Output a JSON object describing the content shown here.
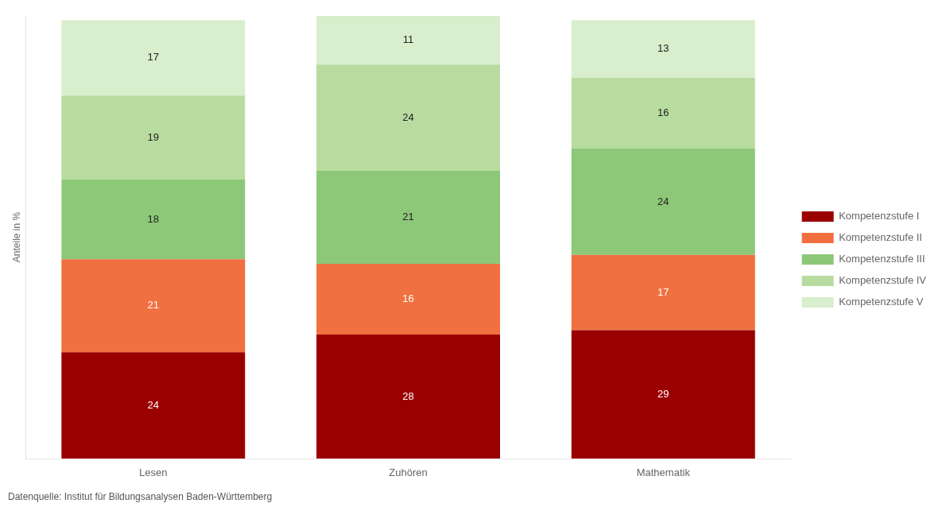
{
  "chart_data": {
    "type": "bar",
    "stacked": true,
    "categories": [
      "Lesen",
      "Zuhören",
      "Mathematik"
    ],
    "series": [
      {
        "name": "Kompetenzstufe I",
        "color": "#9b0000",
        "values": [
          24,
          28,
          29
        ]
      },
      {
        "name": "Kompetenzstufe II",
        "color": "#f07040",
        "values": [
          21,
          16,
          17
        ]
      },
      {
        "name": "Kompetenzstufe III",
        "color": "#8dc878",
        "values": [
          18,
          21,
          24
        ]
      },
      {
        "name": "Kompetenzstufe IV",
        "color": "#b8dca0",
        "values": [
          19,
          24,
          16
        ]
      },
      {
        "name": "Kompetenzstufe V",
        "color": "#d8eecc",
        "values": [
          17,
          11,
          13
        ]
      }
    ],
    "ylabel": "Anteile in %",
    "ylim": [
      0,
      100
    ],
    "grid": false,
    "legend": "right",
    "data_labels": true,
    "tick_labels": "x",
    "annotations": [
      "Datenquelle: Institut für Bildungsanalysen Baden-Württemberg"
    ]
  }
}
